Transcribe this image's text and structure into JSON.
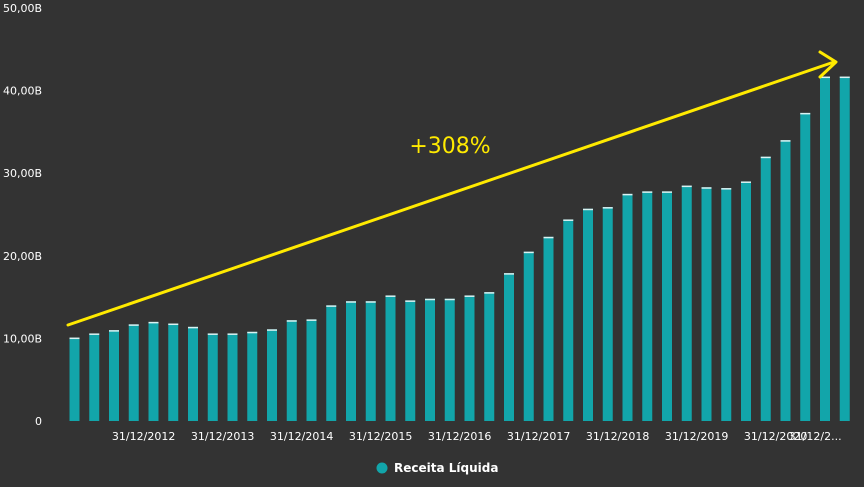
{
  "chart_data": {
    "type": "bar",
    "title": "",
    "xlabel": "",
    "ylabel": "",
    "ylim": [
      0,
      50
    ],
    "y_unit_suffix": "B",
    "y_ticks": [
      {
        "value": 0,
        "label": "0"
      },
      {
        "value": 10,
        "label": "10,00B"
      },
      {
        "value": 20,
        "label": "20,00B"
      },
      {
        "value": 30,
        "label": "30,00B"
      },
      {
        "value": 40,
        "label": "40,00B"
      },
      {
        "value": 50,
        "label": "50,00B"
      }
    ],
    "x_tick_labels": [
      {
        "after_index": 3,
        "label": "31/12/2012"
      },
      {
        "after_index": 7,
        "label": "31/12/2013"
      },
      {
        "after_index": 11,
        "label": "31/12/2014"
      },
      {
        "after_index": 15,
        "label": "31/12/2015"
      },
      {
        "after_index": 19,
        "label": "31/12/2016"
      },
      {
        "after_index": 23,
        "label": "31/12/2017"
      },
      {
        "after_index": 27,
        "label": "31/12/2018"
      },
      {
        "after_index": 31,
        "label": "31/12/2019"
      },
      {
        "after_index": 35,
        "label": "31/12/2020"
      },
      {
        "after_index": 37,
        "label": "31/12/2..."
      }
    ],
    "grid": false,
    "legend_position": "bottom-center",
    "series": [
      {
        "name": "Receita Líquida",
        "color": "#12a5aa",
        "values": [
          10.1,
          10.6,
          11.0,
          11.7,
          12.0,
          11.8,
          11.4,
          10.6,
          10.6,
          10.8,
          11.1,
          12.2,
          12.3,
          14.0,
          14.5,
          14.5,
          15.2,
          14.6,
          14.8,
          14.8,
          15.2,
          15.6,
          17.9,
          20.5,
          22.3,
          24.4,
          25.7,
          25.9,
          27.5,
          27.8,
          27.8,
          28.5,
          28.3,
          28.2,
          29.0,
          32.0,
          34.0,
          37.3,
          41.7,
          41.7
        ]
      }
    ],
    "annotation": {
      "text": "+308%",
      "color": "#ffea00",
      "type": "trend-arrow"
    }
  }
}
